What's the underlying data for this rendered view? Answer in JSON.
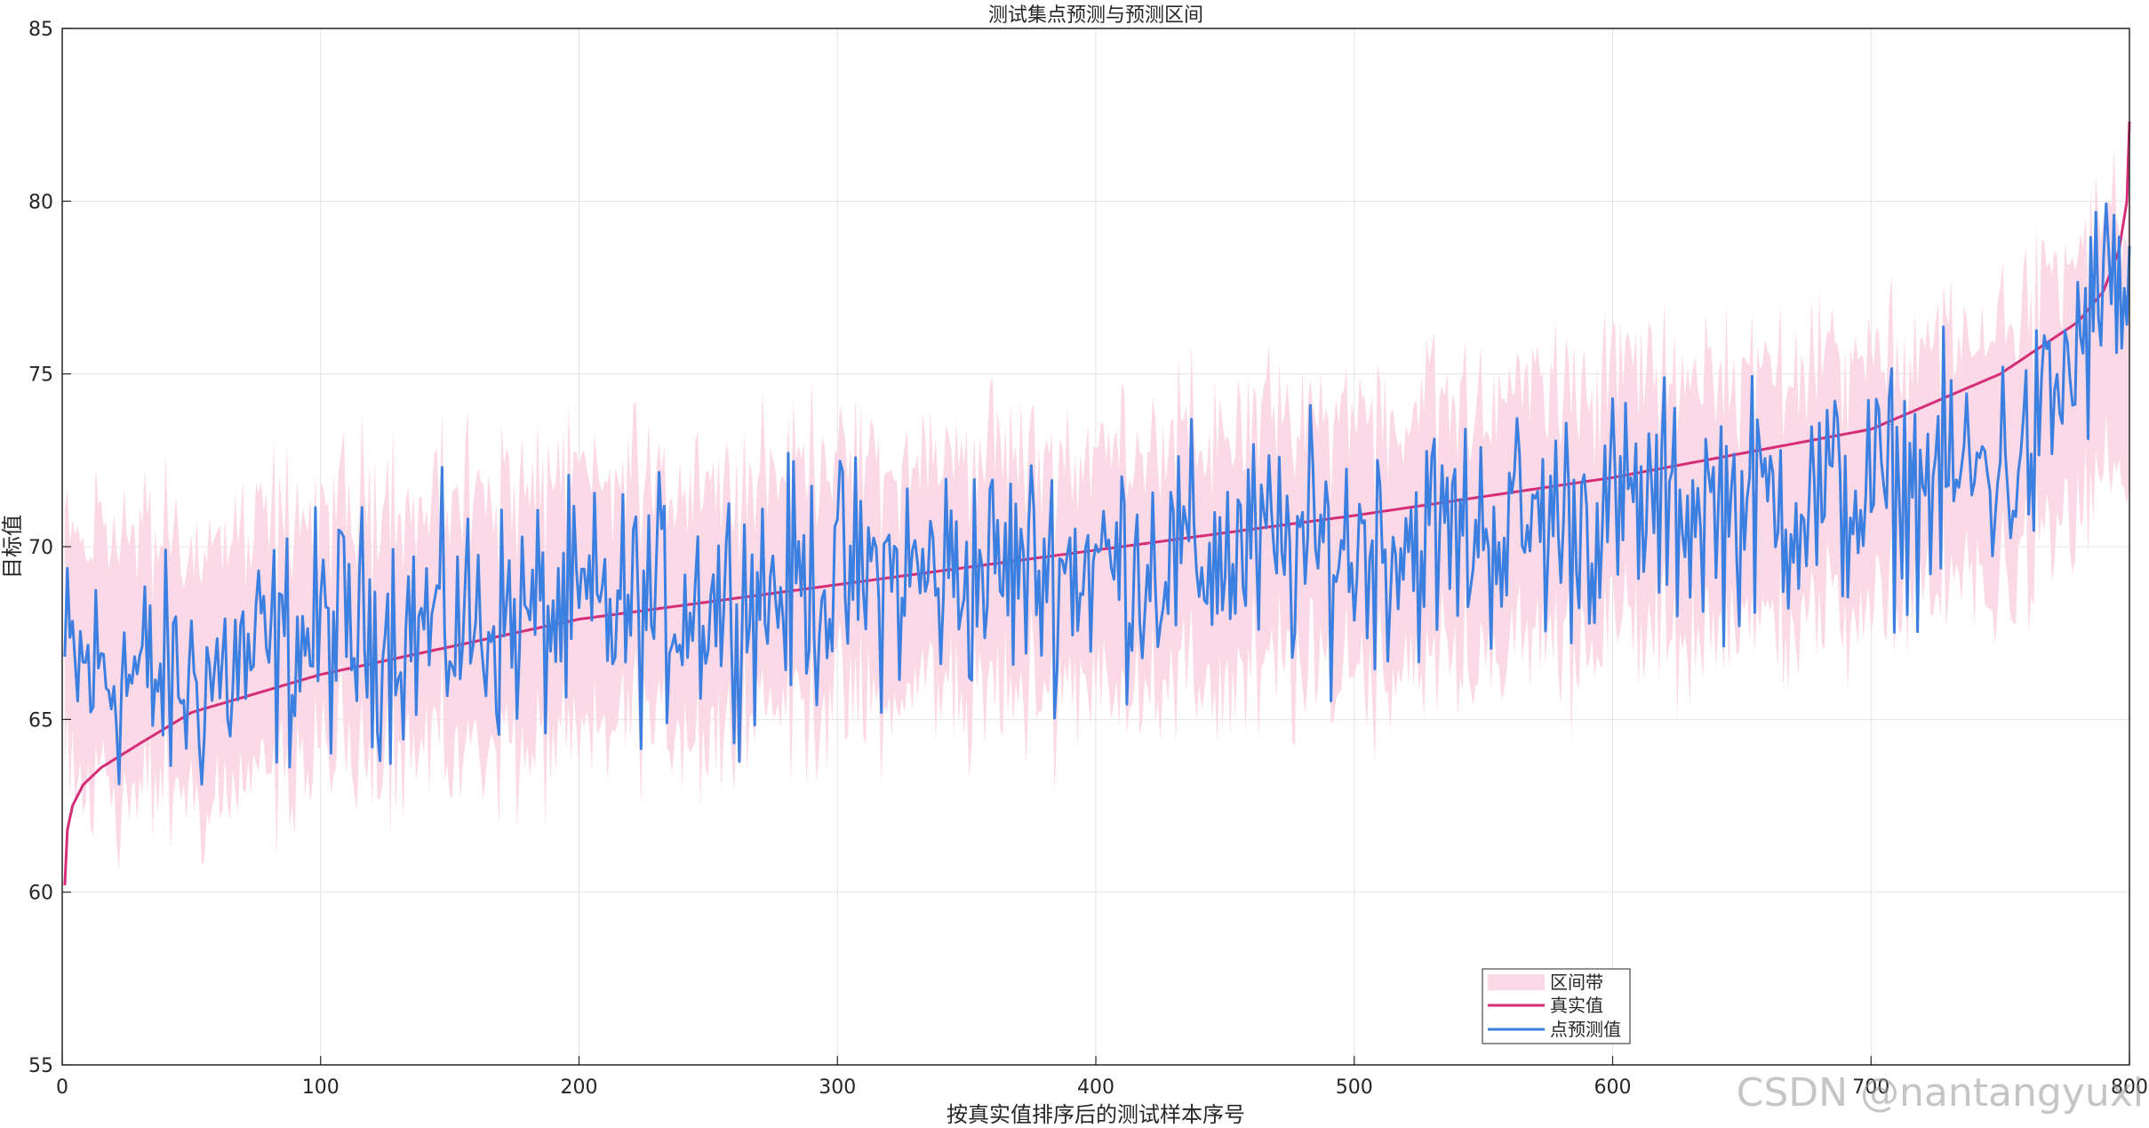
{
  "colors": {
    "band": "#fcd9e6",
    "true_line": "#d62d78",
    "pred_line": "#3b7fe0",
    "grid": "#e3e3e3",
    "axis": "#262626"
  },
  "watermark": "CSDN @nantangyuxi",
  "chart_data": {
    "type": "line",
    "title": "测试集点预测与预测区间",
    "xlabel": "按真实值排序后的测试样本序号",
    "ylabel": "目标值",
    "xlim": [
      0,
      800
    ],
    "ylim": [
      55,
      85
    ],
    "xticks": [
      0,
      100,
      200,
      300,
      400,
      500,
      600,
      700,
      800
    ],
    "yticks": [
      55,
      60,
      65,
      70,
      75,
      80,
      85
    ],
    "grid": true,
    "legend": {
      "position": "bottom-center",
      "entries": [
        "区间带",
        "真实值",
        "点预测值"
      ]
    },
    "n_points": 800,
    "series": [
      {
        "name": "区间带",
        "kind": "band",
        "description_points_x": [
          1,
          50,
          100,
          200,
          300,
          400,
          500,
          600,
          700,
          760,
          800
        ],
        "lower_mean": [
          64.0,
          63.0,
          64.5,
          65.0,
          66.0,
          66.5,
          67.0,
          68.0,
          69.0,
          70.0,
          71.0
        ],
        "upper_mean": [
          70.0,
          69.5,
          70.5,
          71.5,
          72.0,
          72.5,
          73.5,
          74.5,
          75.5,
          76.5,
          77.5
        ]
      },
      {
        "name": "真实值",
        "kind": "line",
        "x": [
          1,
          2,
          4,
          8,
          15,
          30,
          50,
          100,
          150,
          200,
          300,
          400,
          500,
          600,
          700,
          750,
          780,
          790,
          796,
          799,
          800
        ],
        "y": [
          60.2,
          61.8,
          62.5,
          63.1,
          63.6,
          64.3,
          65.2,
          66.3,
          67.1,
          67.9,
          68.9,
          69.9,
          70.9,
          72.0,
          73.4,
          75.0,
          76.5,
          77.4,
          78.6,
          80.0,
          82.3
        ]
      },
      {
        "name": "点预测值",
        "kind": "line",
        "trend_x": [
          1,
          50,
          100,
          200,
          300,
          400,
          500,
          600,
          700,
          760,
          795,
          800
        ],
        "trend_y": [
          66.5,
          66.0,
          67.5,
          68.0,
          69.0,
          69.5,
          70.0,
          71.0,
          71.5,
          72.5,
          78.0,
          76.5
        ],
        "noise_amplitude": 1.7
      }
    ]
  }
}
